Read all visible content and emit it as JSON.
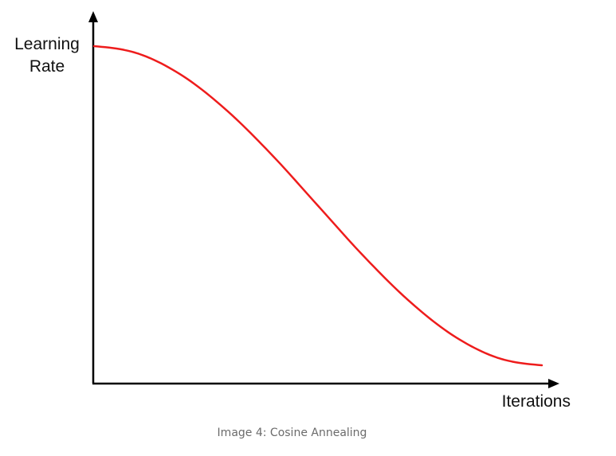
{
  "caption": "Image 4: Cosine Annealing",
  "chart_data": {
    "type": "line",
    "title": "",
    "ylabel": [
      "Learning",
      "Rate"
    ],
    "xlabel": "Iterations",
    "x_ticks": [],
    "y_ticks": [],
    "grid": false,
    "legend": "none",
    "series": [
      {
        "color": "#ee1c1c",
        "shape": "cosine annealing",
        "x": [
          0,
          0.1,
          0.2,
          0.3,
          0.4,
          0.5,
          0.6,
          0.7,
          0.8,
          0.9,
          1.0
        ],
        "y": [
          1.0,
          0.976,
          0.905,
          0.794,
          0.655,
          0.5,
          0.345,
          0.206,
          0.095,
          0.024,
          0.0
        ]
      }
    ]
  }
}
